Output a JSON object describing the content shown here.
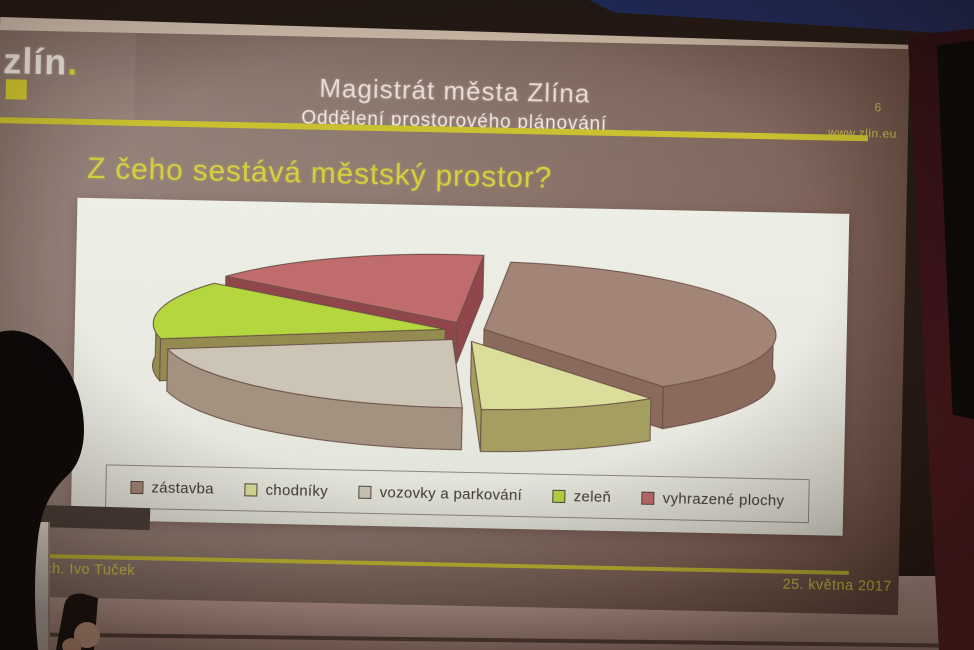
{
  "slide": {
    "logo": {
      "text": "zlín",
      "dot": "."
    },
    "header": {
      "title": "Magistrát města Zlína",
      "subtitle": "Oddělení prostorového plánování"
    },
    "page_number": "6",
    "website": "www.zlin.eu",
    "title": "Z čeho sestává městský prostor?",
    "footer": {
      "author": "arch. Ivo Tuček",
      "date": "25. května 2017"
    }
  },
  "colors": {
    "accent_yellow": "#c9c130",
    "title_yellow": "#d7d03e",
    "logo_white": "#f2ece4",
    "slide_background": "#8d7a71",
    "panel_background": "#eaebe2",
    "legend_text": "#3e3a32",
    "wall_right": "#3c1318",
    "ceiling_beam": "#1e2a5a"
  },
  "chart_data": {
    "type": "pie",
    "style": "3d-exploded",
    "title": "Z čeho sestává městský prostor?",
    "legend_position": "bottom",
    "values_are_estimates": true,
    "units": "percent",
    "start_angle_deg": 275,
    "slices": [
      {
        "label": "zástavba",
        "value": 38,
        "color": "#a28577",
        "side_color": "#8a6a5c"
      },
      {
        "label": "chodníky",
        "value": 10,
        "color": "#dade9a",
        "side_color": "#a49e60"
      },
      {
        "label": "vozovky a parkování",
        "value": 22,
        "color": "#ccc5b6",
        "side_color": "#a3927f"
      },
      {
        "label": "zeleň",
        "value": 14,
        "color": "#b4d63e",
        "side_color": "#948b51"
      },
      {
        "label": "vyhrazené plochy",
        "value": 16,
        "color": "#c06b6e",
        "side_color": "#8f474c"
      }
    ]
  }
}
